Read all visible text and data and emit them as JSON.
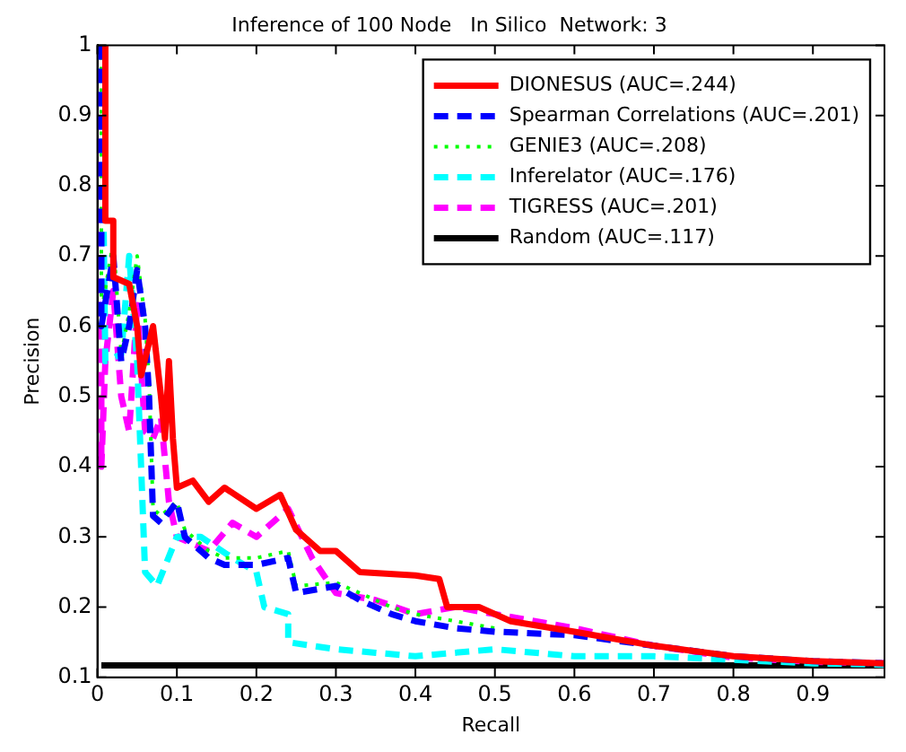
{
  "chart_data": {
    "type": "line",
    "title": "Inference of 100 Node   In Silico  Network: 3",
    "xlabel": "Recall",
    "ylabel": "Precision",
    "xlim": [
      0,
      0.99
    ],
    "ylim": [
      0.1,
      1
    ],
    "xticks": [
      0,
      0.1,
      0.2,
      0.3,
      0.4,
      0.5,
      0.6,
      0.7,
      0.8,
      0.9
    ],
    "yticks": [
      0.1,
      0.2,
      0.3,
      0.4,
      0.5,
      0.6,
      0.7,
      0.8,
      0.9,
      1
    ],
    "grid": false,
    "legend": "top right",
    "marker": "none",
    "series": [
      {
        "name": "DIONESUS (AUC=.244)",
        "color": "#ff0000",
        "line_style": "solid",
        "x": [
          0.01,
          0.01,
          0.02,
          0.02,
          0.04,
          0.05,
          0.055,
          0.07,
          0.08,
          0.085,
          0.09,
          0.095,
          0.1,
          0.12,
          0.14,
          0.16,
          0.2,
          0.23,
          0.25,
          0.28,
          0.3,
          0.33,
          0.4,
          0.43,
          0.44,
          0.46,
          0.48,
          0.52,
          0.6,
          0.7,
          0.8,
          0.9,
          0.99
        ],
        "values": [
          1,
          0.75,
          0.75,
          0.67,
          0.66,
          0.6,
          0.53,
          0.6,
          0.5,
          0.44,
          0.55,
          0.44,
          0.37,
          0.38,
          0.35,
          0.37,
          0.34,
          0.36,
          0.31,
          0.28,
          0.28,
          0.25,
          0.245,
          0.24,
          0.2,
          0.2,
          0.2,
          0.18,
          0.165,
          0.145,
          0.13,
          0.123,
          0.12
        ]
      },
      {
        "name": "Spearman Correlations (AUC=.201)",
        "color": "#0000ff",
        "line_style": "dashed",
        "x": [
          0.005,
          0.005,
          0.02,
          0.03,
          0.04,
          0.05,
          0.06,
          0.065,
          0.07,
          0.08,
          0.1,
          0.11,
          0.14,
          0.16,
          0.2,
          0.24,
          0.25,
          0.3,
          0.33,
          0.37,
          0.4,
          0.45,
          0.5,
          0.6,
          0.7,
          0.8,
          0.9,
          0.99
        ],
        "values": [
          1,
          0.6,
          0.7,
          0.55,
          0.6,
          0.68,
          0.6,
          0.5,
          0.33,
          0.32,
          0.35,
          0.3,
          0.27,
          0.26,
          0.26,
          0.27,
          0.22,
          0.23,
          0.21,
          0.19,
          0.18,
          0.17,
          0.165,
          0.16,
          0.145,
          0.13,
          0.123,
          0.12
        ]
      },
      {
        "name": "GENIE3 (AUC=.208)",
        "color": "#00ff00",
        "line_style": "dotted",
        "x": [
          0.005,
          0.005,
          0.02,
          0.03,
          0.04,
          0.05,
          0.06,
          0.065,
          0.07,
          0.08,
          0.1,
          0.11,
          0.14,
          0.16,
          0.2,
          0.24,
          0.25,
          0.3,
          0.33,
          0.37,
          0.4,
          0.45,
          0.5
        ],
        "values": [
          1,
          0.62,
          0.72,
          0.56,
          0.62,
          0.7,
          0.61,
          0.52,
          0.34,
          0.33,
          0.35,
          0.31,
          0.28,
          0.27,
          0.27,
          0.28,
          0.23,
          0.235,
          0.22,
          0.2,
          0.19,
          0.18,
          0.17
        ]
      },
      {
        "name": "Inferelator (AUC=.176)",
        "color": "#00ffff",
        "line_style": "dashed",
        "x": [
          0.005,
          0.01,
          0.03,
          0.04,
          0.05,
          0.06,
          0.075,
          0.1,
          0.13,
          0.17,
          0.2,
          0.21,
          0.24,
          0.24,
          0.3,
          0.35,
          0.4,
          0.5,
          0.6,
          0.7,
          0.8,
          0.9,
          0.99
        ],
        "values": [
          1,
          0.55,
          0.56,
          0.7,
          0.55,
          0.25,
          0.23,
          0.3,
          0.3,
          0.27,
          0.25,
          0.2,
          0.19,
          0.15,
          0.14,
          0.135,
          0.13,
          0.14,
          0.13,
          0.13,
          0.125,
          0.12,
          0.118
        ]
      },
      {
        "name": "TIGRESS (AUC=.201)",
        "color": "#ff00ff",
        "line_style": "dashed",
        "x": [
          0.005,
          0.005,
          0.01,
          0.02,
          0.03,
          0.04,
          0.05,
          0.06,
          0.07,
          0.08,
          0.09,
          0.1,
          0.14,
          0.17,
          0.2,
          0.24,
          0.27,
          0.3,
          0.35,
          0.4,
          0.45,
          0.5,
          0.6,
          0.7,
          0.8,
          0.9,
          0.99
        ],
        "values": [
          1,
          0.4,
          0.55,
          0.65,
          0.5,
          0.45,
          0.63,
          0.45,
          0.44,
          0.47,
          0.35,
          0.3,
          0.28,
          0.32,
          0.3,
          0.34,
          0.27,
          0.22,
          0.21,
          0.19,
          0.2,
          0.19,
          0.17,
          0.145,
          0.128,
          0.122,
          0.12
        ]
      },
      {
        "name": "Random (AUC=.117)",
        "color": "#000000",
        "line_style": "solid",
        "x": [
          0.005,
          0.99
        ],
        "values": [
          0.117,
          0.117
        ]
      }
    ]
  }
}
